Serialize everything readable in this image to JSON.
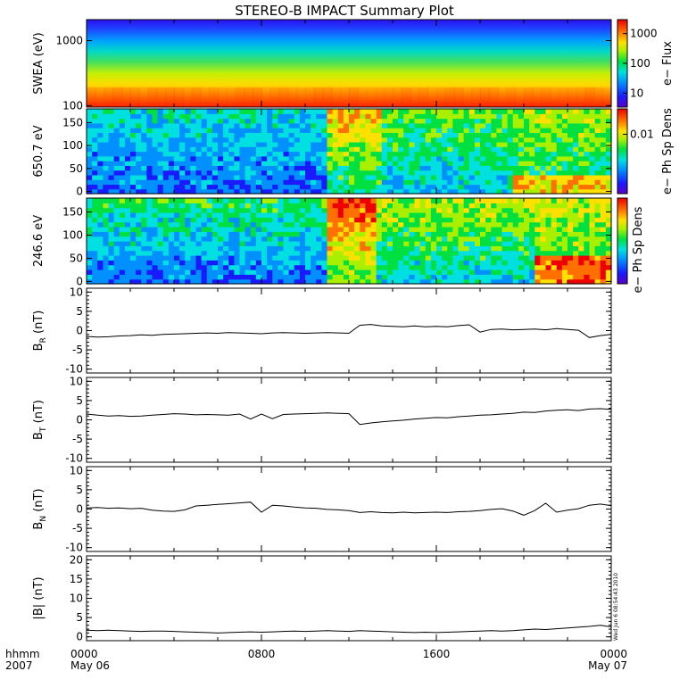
{
  "title": "STEREO-B IMPACT Summary Plot",
  "stamp": "Wed Jun  6 08:54:43 2010",
  "time_axis": {
    "label_top": "hhmm",
    "label_bottom": "2007",
    "ticks": [
      {
        "hhmm": "0000",
        "date": "May 06",
        "hour": 0
      },
      {
        "hhmm": "0800",
        "date": "",
        "hour": 8
      },
      {
        "hhmm": "1600",
        "date": "",
        "hour": 16
      },
      {
        "hhmm": "0000",
        "date": "May 07",
        "hour": 24
      }
    ],
    "range_hours": [
      0,
      24
    ]
  },
  "chart_data": [
    {
      "type": "heatmap",
      "id": "swea",
      "ylabel": "SWEA (eV)",
      "ylog": true,
      "ylim": [
        95,
        2100
      ],
      "yticks": [
        {
          "v": 100,
          "label": "100"
        },
        {
          "v": 1000,
          "label": "1000"
        }
      ],
      "colorbar": {
        "label": "e− Flux",
        "ticks": [
          {
            "label": "1000",
            "frac": 0.84
          },
          {
            "label": "100",
            "frac": 0.5
          },
          {
            "label": "10",
            "frac": 0.16
          }
        ]
      }
    },
    {
      "type": "heatmap",
      "id": "pad650",
      "ylabel": "650.7 eV",
      "ylim": [
        -5,
        180
      ],
      "yticks": [
        {
          "v": 0,
          "label": "0"
        },
        {
          "v": 50,
          "label": "50"
        },
        {
          "v": 100,
          "label": "100"
        },
        {
          "v": 150,
          "label": "150"
        }
      ],
      "colorbar": {
        "label": "e− Ph Sp Dens",
        "ticks": [
          {
            "label": "0.01",
            "frac": 0.7
          }
        ]
      }
    },
    {
      "type": "heatmap",
      "id": "pad246",
      "ylabel": "246.6 eV",
      "ylim": [
        -5,
        180
      ],
      "yticks": [
        {
          "v": 0,
          "label": "0"
        },
        {
          "v": 50,
          "label": "50"
        },
        {
          "v": 100,
          "label": "100"
        },
        {
          "v": 150,
          "label": "150"
        }
      ],
      "colorbar": {
        "label": "e− Ph Sp Dens",
        "ticks": []
      }
    },
    {
      "type": "line",
      "id": "br",
      "ylabel": "B",
      "ysub": "R",
      "yunit": "(nT)",
      "ylim": [
        -11,
        11
      ],
      "yticks": [
        -10,
        -5,
        0,
        5,
        10
      ],
      "x": [
        0,
        0.5,
        1,
        1.5,
        2,
        2.5,
        3,
        3.5,
        4,
        4.5,
        5,
        5.5,
        6,
        6.5,
        7,
        7.5,
        8,
        8.5,
        9,
        9.5,
        10,
        10.5,
        11,
        11.5,
        12,
        12.5,
        13,
        13.5,
        14,
        14.5,
        15,
        15.5,
        16,
        16.5,
        17,
        17.5,
        18,
        18.5,
        19,
        19.5,
        20,
        20.5,
        21,
        21.5,
        22,
        22.5,
        23,
        23.5,
        24
      ],
      "y": [
        -1.5,
        -1.7,
        -1.6,
        -1.4,
        -1.3,
        -1.1,
        -1.2,
        -1.0,
        -0.9,
        -0.8,
        -0.7,
        -0.6,
        -0.7,
        -0.5,
        -0.6,
        -0.7,
        -0.8,
        -0.6,
        -0.5,
        -0.6,
        -0.7,
        -0.6,
        -0.5,
        -0.6,
        -0.7,
        1.4,
        1.6,
        1.2,
        1.1,
        1.0,
        1.2,
        1.0,
        1.1,
        1.0,
        1.3,
        1.5,
        -0.4,
        0.3,
        0.4,
        0.2,
        0.3,
        0.4,
        0.2,
        0.5,
        0.3,
        0.1,
        -1.8,
        -1.3,
        -1.0
      ]
    },
    {
      "type": "line",
      "id": "bt",
      "ylabel": "B",
      "ysub": "T",
      "yunit": "(nT)",
      "ylim": [
        -11,
        11
      ],
      "yticks": [
        -10,
        -5,
        0,
        5,
        10
      ],
      "x": [
        0,
        0.5,
        1,
        1.5,
        2,
        2.5,
        3,
        3.5,
        4,
        4.5,
        5,
        5.5,
        6,
        6.5,
        7,
        7.5,
        8,
        8.5,
        9,
        9.5,
        10,
        10.5,
        11,
        11.5,
        12,
        12.5,
        13,
        13.5,
        14,
        14.5,
        15,
        15.5,
        16,
        16.5,
        17,
        17.5,
        18,
        18.5,
        19,
        19.5,
        20,
        20.5,
        21,
        21.5,
        22,
        22.5,
        23,
        23.5,
        24
      ],
      "y": [
        1.5,
        1.2,
        1.0,
        1.1,
        0.9,
        1.0,
        1.2,
        1.4,
        1.6,
        1.5,
        1.3,
        1.4,
        1.3,
        1.2,
        1.5,
        0.2,
        1.5,
        0.3,
        1.4,
        1.5,
        1.6,
        1.7,
        1.8,
        1.7,
        1.6,
        -1.2,
        -0.8,
        -0.5,
        -0.3,
        -0.1,
        0.2,
        0.4,
        0.6,
        0.5,
        0.8,
        1.0,
        1.2,
        1.3,
        1.5,
        1.7,
        2.0,
        1.9,
        2.3,
        2.5,
        2.6,
        2.4,
        2.8,
        2.9,
        2.7
      ]
    },
    {
      "type": "line",
      "id": "bn",
      "ylabel": "B",
      "ysub": "N",
      "yunit": "(nT)",
      "ylim": [
        -11,
        11
      ],
      "yticks": [
        -10,
        -5,
        0,
        5,
        10
      ],
      "x": [
        0,
        0.5,
        1,
        1.5,
        2,
        2.5,
        3,
        3.5,
        4,
        4.5,
        5,
        5.5,
        6,
        6.5,
        7,
        7.5,
        8,
        8.5,
        9,
        9.5,
        10,
        10.5,
        11,
        11.5,
        12,
        12.5,
        13,
        13.5,
        14,
        14.5,
        15,
        15.5,
        16,
        16.5,
        17,
        17.5,
        18,
        18.5,
        19,
        19.5,
        20,
        20.5,
        21,
        21.5,
        22,
        22.5,
        23,
        23.5,
        24
      ],
      "y": [
        0.3,
        0.4,
        0.2,
        0.3,
        0.1,
        0.2,
        -0.3,
        -0.5,
        -0.6,
        -0.2,
        0.8,
        1.0,
        1.2,
        1.4,
        1.6,
        1.8,
        -0.8,
        1.0,
        0.8,
        0.5,
        0.3,
        0.2,
        -0.1,
        -0.2,
        -0.4,
        -0.9,
        -0.7,
        -0.9,
        -1.0,
        -0.8,
        -1.0,
        -0.9,
        -0.8,
        -0.9,
        -0.7,
        -0.6,
        -0.4,
        -0.1,
        0.1,
        -0.5,
        -1.6,
        -0.4,
        1.5,
        -0.8,
        -0.3,
        0.1,
        1.0,
        1.3,
        0.9
      ]
    },
    {
      "type": "line",
      "id": "bmag",
      "ylabel": "|B|",
      "ysub": "",
      "yunit": "(nT)",
      "ylim": [
        -1,
        21
      ],
      "yticks": [
        0,
        5,
        10,
        15,
        20
      ],
      "x": [
        0,
        0.5,
        1,
        1.5,
        2,
        2.5,
        3,
        3.5,
        4,
        4.5,
        5,
        5.5,
        6,
        6.5,
        7,
        7.5,
        8,
        8.5,
        9,
        9.5,
        10,
        10.5,
        11,
        11.5,
        12,
        12.5,
        13,
        13.5,
        14,
        14.5,
        15,
        15.5,
        16,
        16.5,
        17,
        17.5,
        18,
        18.5,
        19,
        19.5,
        20,
        20.5,
        21,
        21.5,
        22,
        22.5,
        23,
        23.5,
        24
      ],
      "y": [
        1.7,
        1.6,
        1.7,
        1.6,
        1.5,
        1.4,
        1.5,
        1.5,
        1.4,
        1.3,
        1.2,
        1.1,
        1.0,
        1.1,
        1.2,
        1.3,
        1.2,
        1.3,
        1.4,
        1.5,
        1.4,
        1.5,
        1.6,
        1.5,
        1.4,
        1.6,
        1.5,
        1.4,
        1.3,
        1.2,
        1.1,
        1.2,
        1.1,
        1.2,
        1.3,
        1.4,
        1.5,
        1.6,
        1.5,
        1.6,
        1.8,
        2.0,
        1.9,
        2.1,
        2.3,
        2.5,
        2.7,
        3.0,
        2.6
      ]
    }
  ]
}
